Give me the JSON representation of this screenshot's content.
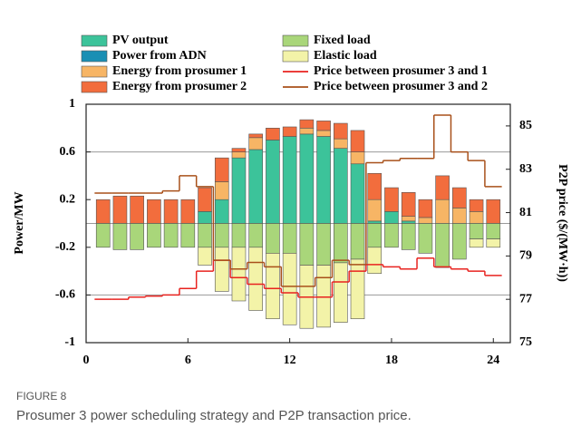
{
  "chart_data": {
    "type": "bar",
    "categories": [
      1,
      2,
      3,
      4,
      5,
      6,
      7,
      8,
      9,
      10,
      11,
      12,
      13,
      14,
      15,
      16,
      17,
      18,
      19,
      20,
      21,
      22,
      23,
      24
    ],
    "xlim": [
      0,
      25
    ],
    "xticks": [
      0,
      6,
      12,
      18,
      24
    ],
    "ylabel": "Power/MW",
    "ylim": [
      -1,
      1
    ],
    "yticks": [
      1,
      0.6,
      0.2,
      -0.2,
      -0.6,
      -1
    ],
    "grid_values": [
      0.6,
      0,
      -0.6
    ],
    "y2label": "P2P price ($/(MW·h))",
    "y2lim": [
      75,
      86
    ],
    "y2ticks": [
      85,
      83,
      81,
      79,
      77,
      75
    ],
    "series": [
      {
        "name": "PV output",
        "color": "#3cc39a",
        "values": [
          0,
          0,
          0,
          0,
          0,
          0,
          0.1,
          0.2,
          0.55,
          0.62,
          0.7,
          0.73,
          0.75,
          0.73,
          0.63,
          0.5,
          0.02,
          0.1,
          0.02,
          0,
          0,
          0,
          0,
          0
        ]
      },
      {
        "name": "Power from ADN",
        "color": "#1a8fb4",
        "values": [
          0,
          0,
          0,
          0,
          0,
          0,
          0,
          0,
          0,
          0,
          0,
          0,
          0,
          0,
          0,
          0,
          0,
          0,
          0,
          0,
          0,
          0,
          0,
          0
        ]
      },
      {
        "name": "Energy from prosumer 1",
        "color": "#f7b565",
        "values": [
          0,
          0,
          0,
          0,
          0,
          0,
          0,
          0.15,
          0.05,
          0.1,
          0,
          0,
          0.05,
          0.05,
          0.08,
          0.1,
          0.18,
          0,
          0.04,
          0.05,
          0.2,
          0.13,
          0.1,
          0
        ]
      },
      {
        "name": "Energy from prosumer 2",
        "color": "#f26d3d",
        "values": [
          0.2,
          0.23,
          0.23,
          0.2,
          0.2,
          0.2,
          0.2,
          0.2,
          0.03,
          0.03,
          0.1,
          0.08,
          0.07,
          0.08,
          0.13,
          0.18,
          0.22,
          0.2,
          0.2,
          0.15,
          0.2,
          0.17,
          0.1,
          0.2
        ]
      },
      {
        "name": "Fixed load",
        "color": "#a9d67a",
        "values": [
          -0.2,
          -0.22,
          -0.22,
          -0.2,
          -0.2,
          -0.2,
          -0.2,
          -0.2,
          -0.2,
          -0.2,
          -0.25,
          -0.25,
          -0.35,
          -0.35,
          -0.33,
          -0.3,
          -0.2,
          -0.2,
          -0.22,
          -0.25,
          -0.37,
          -0.3,
          -0.13,
          -0.13
        ]
      },
      {
        "name": "Elastic load",
        "color": "#f3f3a8",
        "values": [
          0,
          0,
          0,
          0,
          0,
          0,
          -0.15,
          -0.37,
          -0.45,
          -0.53,
          -0.55,
          -0.6,
          -0.53,
          -0.52,
          -0.5,
          -0.5,
          -0.22,
          0,
          0,
          0,
          0,
          0,
          -0.07,
          -0.07
        ]
      },
      {
        "name": "Price between prosumer 3 and 1",
        "color": "#e8231f",
        "type": "step",
        "axis": "y2",
        "values": [
          77,
          77,
          77.1,
          77.15,
          77.2,
          77.5,
          78.3,
          78.8,
          78,
          77.7,
          77.5,
          77.3,
          77.1,
          77.1,
          77.8,
          78.3,
          78.6,
          78.5,
          78.4,
          78.9,
          78.5,
          78.4,
          78.3,
          78.1
        ]
      },
      {
        "name": "Price between prosumer 3 and 2",
        "color": "#a8501a",
        "type": "step",
        "axis": "y2",
        "values": [
          81.9,
          81.9,
          81.9,
          81.9,
          82,
          82.7,
          82.2,
          78.8,
          78.4,
          78.7,
          78.5,
          77.6,
          77.6,
          78,
          78.8,
          78.6,
          83.3,
          83.4,
          83.5,
          83.5,
          85.5,
          83.8,
          83.4,
          82.2
        ]
      }
    ]
  },
  "caption": {
    "label": "FIGURE 8",
    "text": "Prosumer 3 power scheduling strategy and P2P transaction price."
  }
}
